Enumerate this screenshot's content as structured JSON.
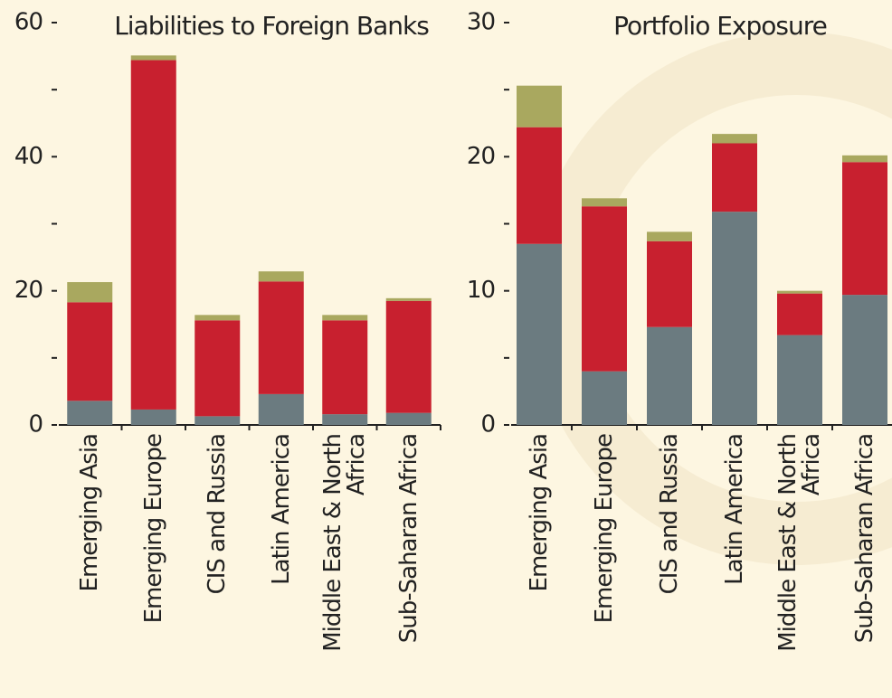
{
  "chart_data": [
    {
      "type": "bar",
      "stacked": true,
      "title": "Liabilities to Foreign Banks",
      "categories": [
        "Emerging Asia",
        "Emerging Europe",
        "CIS and Russia",
        "Latin America",
        "Middle East & North Africa",
        "Sub-Saharan Africa"
      ],
      "series": [
        {
          "color": "#6b7b80",
          "values": [
            3.6,
            2.3,
            1.3,
            4.6,
            1.6,
            1.8
          ]
        },
        {
          "color": "#c8202f",
          "values": [
            14.7,
            52.1,
            14.3,
            16.8,
            14.0,
            16.7
          ]
        },
        {
          "color": "#a9a85f",
          "values": [
            3.0,
            0.7,
            0.8,
            1.5,
            0.8,
            0.4
          ]
        }
      ],
      "ylim": [
        0,
        60
      ],
      "yticks": [
        0,
        20,
        40,
        60
      ],
      "minor_yticks": [
        10,
        30,
        50
      ]
    },
    {
      "type": "bar",
      "stacked": true,
      "title": "Portfolio Exposure",
      "categories": [
        "Emerging Asia",
        "Emerging Europe",
        "CIS and Russia",
        "Latin America",
        "Middle East & North Africa",
        "Sub-Saharan Africa"
      ],
      "series": [
        {
          "color": "#6b7b80",
          "values": [
            13.5,
            4.0,
            7.3,
            15.9,
            6.7,
            9.7
          ]
        },
        {
          "color": "#c8202f",
          "values": [
            8.7,
            12.3,
            6.4,
            5.1,
            3.1,
            9.9
          ]
        },
        {
          "color": "#a9a85f",
          "values": [
            3.1,
            0.6,
            0.7,
            0.7,
            0.2,
            0.5
          ]
        }
      ],
      "ylim": [
        0,
        30
      ],
      "yticks": [
        0,
        10,
        20,
        30
      ],
      "minor_yticks": [
        5,
        15,
        25
      ]
    }
  ]
}
